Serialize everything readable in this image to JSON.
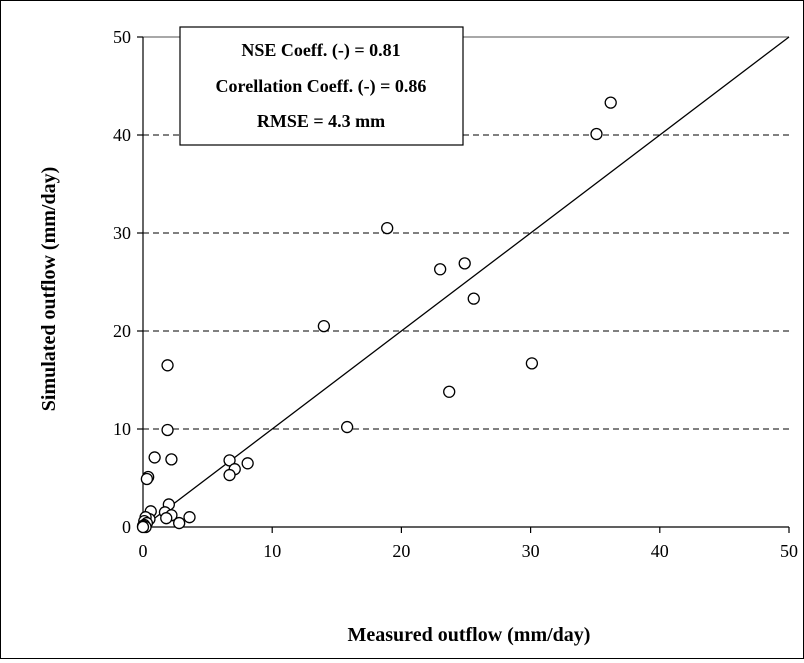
{
  "chart_data": {
    "type": "scatter",
    "title": "",
    "xlabel": "Measured outflow  (mm/day)",
    "ylabel": "Simulated outflow  (mm/day)",
    "xlim": [
      0,
      50
    ],
    "ylim": [
      0,
      50
    ],
    "x_ticks": [
      0,
      10,
      20,
      30,
      40,
      50
    ],
    "y_ticks": [
      0,
      10,
      20,
      30,
      40,
      50
    ],
    "grid": "horizontal dashed",
    "reference_line": {
      "type": "1:1",
      "from": [
        0,
        0
      ],
      "to": [
        50,
        50
      ]
    },
    "annotation": {
      "lines": [
        "NSE Coeff. (-)  = 0.81",
        "Corellation Coeff. (-) = 0.86",
        "RMSE = 4.3 mm"
      ],
      "placement": "top-left"
    },
    "series": [
      {
        "points": [
          [
            36.2,
            43.3
          ],
          [
            35.1,
            40.1
          ],
          [
            18.9,
            30.5
          ],
          [
            24.9,
            26.9
          ],
          [
            23.0,
            26.3
          ],
          [
            25.6,
            23.3
          ],
          [
            14.0,
            20.5
          ],
          [
            30.1,
            16.7
          ],
          [
            1.9,
            16.5
          ],
          [
            23.7,
            13.8
          ],
          [
            15.8,
            10.2
          ],
          [
            1.9,
            9.9
          ],
          [
            0.9,
            7.1
          ],
          [
            2.2,
            6.9
          ],
          [
            6.7,
            6.8
          ],
          [
            8.1,
            6.5
          ],
          [
            7.1,
            5.9
          ],
          [
            6.7,
            5.3
          ],
          [
            0.4,
            5.1
          ],
          [
            0.3,
            4.9
          ],
          [
            2.0,
            2.3
          ],
          [
            0.6,
            1.6
          ],
          [
            1.7,
            1.5
          ],
          [
            2.2,
            1.2
          ],
          [
            3.6,
            1.0
          ],
          [
            1.8,
            0.9
          ],
          [
            0.5,
            0.8
          ],
          [
            0.2,
            1.0
          ],
          [
            0.1,
            0.6
          ],
          [
            0.3,
            0.4
          ],
          [
            2.8,
            0.4
          ],
          [
            0.1,
            0.2
          ],
          [
            0.0,
            0.1
          ],
          [
            0.2,
            0.0
          ],
          [
            0.0,
            0.0
          ]
        ]
      }
    ]
  }
}
